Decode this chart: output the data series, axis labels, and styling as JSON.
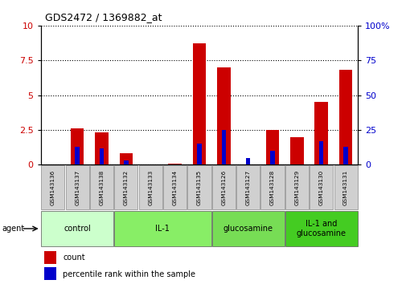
{
  "title": "GDS2472 / 1369882_at",
  "samples": [
    "GSM143136",
    "GSM143137",
    "GSM143138",
    "GSM143132",
    "GSM143133",
    "GSM143134",
    "GSM143135",
    "GSM143126",
    "GSM143127",
    "GSM143128",
    "GSM143129",
    "GSM143130",
    "GSM143131"
  ],
  "count_values": [
    0.0,
    2.6,
    2.3,
    0.8,
    0.0,
    0.05,
    8.7,
    7.0,
    0.0,
    2.5,
    2.0,
    4.5,
    6.8
  ],
  "percentile_values": [
    0.0,
    1.3,
    1.2,
    0.3,
    0.0,
    0.0,
    1.5,
    2.5,
    0.5,
    1.0,
    0.0,
    1.7,
    1.3
  ],
  "groups": [
    {
      "label": "control",
      "start": 0,
      "end": 2,
      "color": "#ccffcc"
    },
    {
      "label": "IL-1",
      "start": 3,
      "end": 6,
      "color": "#88ee66"
    },
    {
      "label": "glucosamine",
      "start": 7,
      "end": 9,
      "color": "#77dd55"
    },
    {
      "label": "IL-1 and\nglucosamine",
      "start": 10,
      "end": 12,
      "color": "#44cc22"
    }
  ],
  "ylim_left": [
    0,
    10
  ],
  "ylim_right": [
    0,
    100
  ],
  "yticks_left": [
    0,
    2.5,
    5.0,
    7.5,
    10
  ],
  "yticks_right": [
    0,
    25,
    50,
    75,
    100
  ],
  "count_color": "#cc0000",
  "percentile_color": "#0000cc",
  "group_colors": [
    "#ccffcc",
    "#88ee66",
    "#77dd55",
    "#44cc22"
  ],
  "sample_box_color": "#d0d0d0",
  "sample_box_edge": "#888888"
}
